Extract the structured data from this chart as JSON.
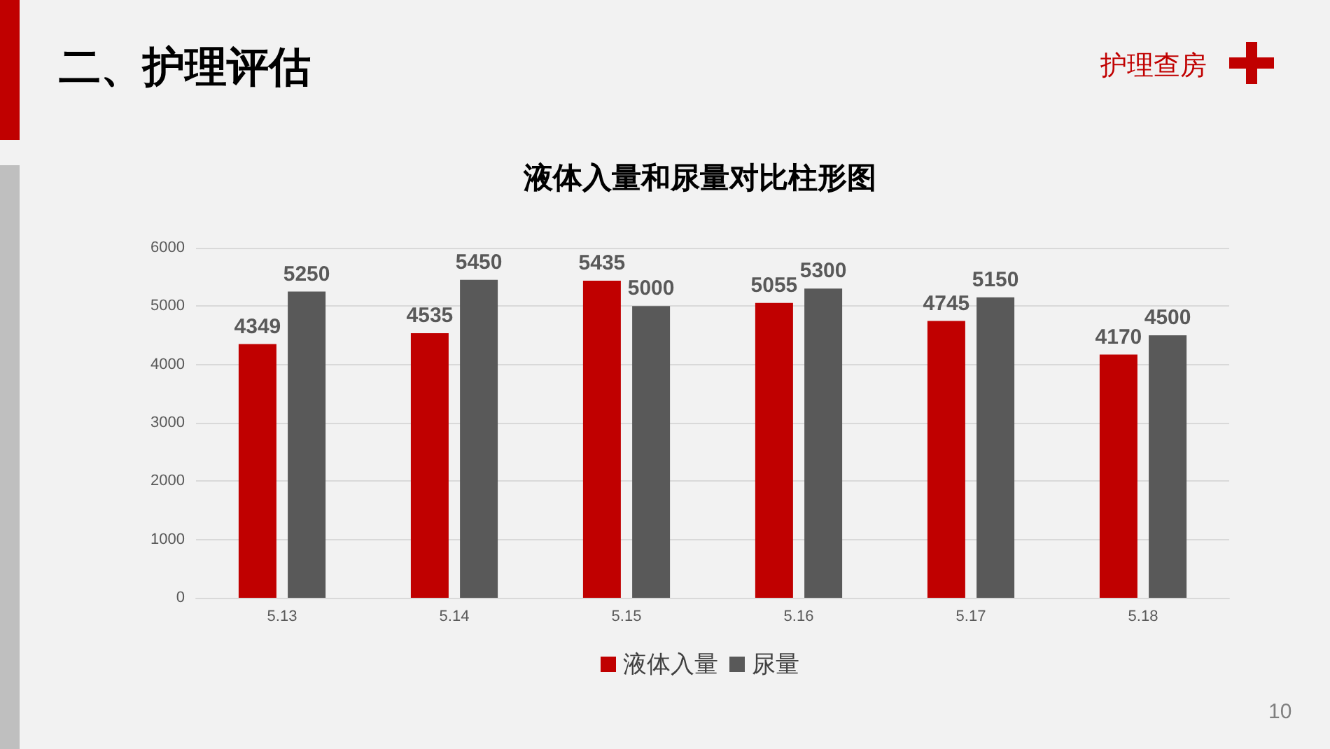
{
  "chart_data": {
    "type": "bar",
    "title": "液体入量和尿量对比柱形图",
    "annotations": [
      "二、护理评估",
      "护理查房",
      "10"
    ],
    "categories": [
      "5.13",
      "5.14",
      "5.15",
      "5.16",
      "5.17",
      "5.18"
    ],
    "series": [
      {
        "name": "液体入量",
        "color": "#c00000",
        "values": [
          4349,
          4535,
          5435,
          5055,
          4745,
          4170
        ]
      },
      {
        "name": "尿量",
        "color": "#595959",
        "values": [
          5250,
          5450,
          5000,
          5300,
          5150,
          4500
        ]
      }
    ],
    "ylim": [
      0,
      6000
    ],
    "yticks": [
      0,
      1000,
      2000,
      3000,
      4000,
      5000,
      6000
    ],
    "grid": "y",
    "legend": "bottom",
    "data_labels": true
  }
}
